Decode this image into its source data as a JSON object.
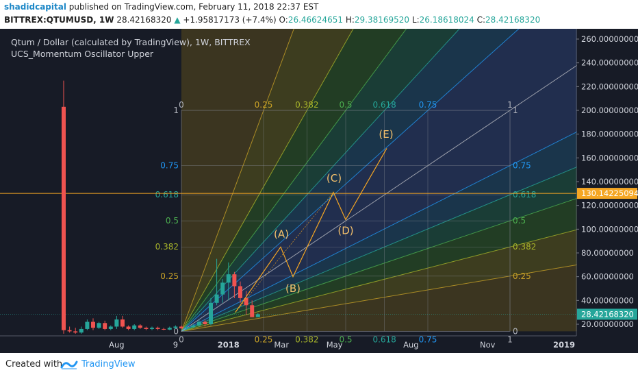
{
  "header": {
    "author": "shadidcapital",
    "published": "published on TradingView.com, February 11, 2018 22:37 EST",
    "symbol": "BITTREX:QTUMUSD, 1W",
    "last": "28.42168320",
    "change": "+1.95817173 (+7.4%)",
    "o_label": "O:",
    "o_value": "26.46624651",
    "h_label": "H:",
    "h_value": "29.38169520",
    "l_label": "L:",
    "l_value": "26.18618024",
    "c_label": "C:",
    "c_value": "28.42168320"
  },
  "legend": {
    "title": "Qtum / Dollar (calculated by TradingView), 1W, BITTREX",
    "indicator": "UCS_Momentum Oscillator Upper"
  },
  "footer": {
    "created_with": "Created with",
    "brand": "TradingView"
  },
  "colors": {
    "background": "#171b26",
    "up": "#26a69a",
    "down": "#ef5350",
    "price_line": "#f5a623",
    "current_price_bg": "#26a69a",
    "brand": "#2196f3"
  },
  "chart_data": {
    "type": "candlestick",
    "y_axis": {
      "range": [
        12,
        270
      ],
      "ticks": [
        "260.00000000",
        "240.00000000",
        "220.00000000",
        "200.00000000",
        "180.00000000",
        "160.00000000",
        "140.00000000",
        "120.00000000",
        "100.00000000",
        "80.00000000",
        "60.00000000",
        "40.00000000",
        "20.00000000"
      ],
      "tick_values": [
        260,
        240,
        220,
        200,
        180,
        160,
        140,
        120,
        100,
        80,
        60,
        40,
        20
      ]
    },
    "x_axis": {
      "labels": [
        "Aug",
        "9",
        "2018",
        "Mar",
        "May",
        "Aug",
        "Nov",
        "2019"
      ],
      "label_week_index": [
        9,
        19,
        28,
        37,
        46,
        59,
        72,
        85
      ]
    },
    "horizontal_line": {
      "label": "130.14225094",
      "value": 130.14
    },
    "current_price": {
      "label": "28.42168320",
      "value": 28.42
    },
    "candles": [
      {
        "o": 203,
        "h": 225,
        "l": 12,
        "c": 15
      },
      {
        "o": 15,
        "h": 18,
        "l": 13,
        "c": 14
      },
      {
        "o": 14,
        "h": 17,
        "l": 12,
        "c": 13
      },
      {
        "o": 13,
        "h": 18,
        "l": 12,
        "c": 16
      },
      {
        "o": 16,
        "h": 24,
        "l": 15,
        "c": 22
      },
      {
        "o": 22,
        "h": 25,
        "l": 15,
        "c": 17
      },
      {
        "o": 17,
        "h": 22,
        "l": 16,
        "c": 21
      },
      {
        "o": 21,
        "h": 23,
        "l": 15,
        "c": 16
      },
      {
        "o": 16,
        "h": 19,
        "l": 15,
        "c": 18
      },
      {
        "o": 18,
        "h": 27,
        "l": 16,
        "c": 24
      },
      {
        "o": 24,
        "h": 27,
        "l": 17,
        "c": 18
      },
      {
        "o": 18,
        "h": 19,
        "l": 15,
        "c": 16
      },
      {
        "o": 16,
        "h": 20,
        "l": 15,
        "c": 19
      },
      {
        "o": 19,
        "h": 20,
        "l": 16,
        "c": 17
      },
      {
        "o": 17,
        "h": 18,
        "l": 15,
        "c": 16
      },
      {
        "o": 16,
        "h": 18,
        "l": 15,
        "c": 17
      },
      {
        "o": 17,
        "h": 18,
        "l": 15,
        "c": 16
      },
      {
        "o": 16,
        "h": 17,
        "l": 15,
        "c": 15.5
      },
      {
        "o": 15.5,
        "h": 18,
        "l": 15,
        "c": 17
      },
      {
        "o": 17,
        "h": 19,
        "l": 16,
        "c": 18
      },
      {
        "o": 18,
        "h": 19,
        "l": 16,
        "c": 16.5
      },
      {
        "o": 16.5,
        "h": 18,
        "l": 16,
        "c": 17.5
      },
      {
        "o": 17.5,
        "h": 20,
        "l": 17,
        "c": 19
      },
      {
        "o": 19,
        "h": 24,
        "l": 18,
        "c": 22
      },
      {
        "o": 22,
        "h": 24,
        "l": 18,
        "c": 20
      },
      {
        "o": 20,
        "h": 42,
        "l": 19,
        "c": 38
      },
      {
        "o": 38,
        "h": 75,
        "l": 36,
        "c": 45
      },
      {
        "o": 45,
        "h": 58,
        "l": 38,
        "c": 55
      },
      {
        "o": 55,
        "h": 72,
        "l": 40,
        "c": 62
      },
      {
        "o": 62,
        "h": 64,
        "l": 42,
        "c": 52
      },
      {
        "o": 52,
        "h": 56,
        "l": 38,
        "c": 42
      },
      {
        "o": 42,
        "h": 48,
        "l": 28,
        "c": 36
      },
      {
        "o": 36,
        "h": 40,
        "l": 26,
        "c": 26
      },
      {
        "o": 26,
        "h": 29.4,
        "l": 26.2,
        "c": 28.4
      }
    ],
    "gann_fan": {
      "levels_top": [
        "0",
        "0.25",
        "0.382",
        "0.5",
        "0.618",
        "0.75",
        "1"
      ],
      "levels_side": [
        "1",
        "0.75",
        "0.618",
        "0.5",
        "0.382",
        "0.25",
        "0"
      ],
      "corner_top_left": "1",
      "corner_bottom_left": "0",
      "bottom_levels": [
        "0.25",
        "0.382",
        "0.5",
        "0.618",
        "0.75",
        "1"
      ],
      "corner_bottom_right": "0"
    },
    "wave_labels": [
      "(A)",
      "(B)",
      "(C)",
      "(D)",
      "(E)"
    ]
  }
}
